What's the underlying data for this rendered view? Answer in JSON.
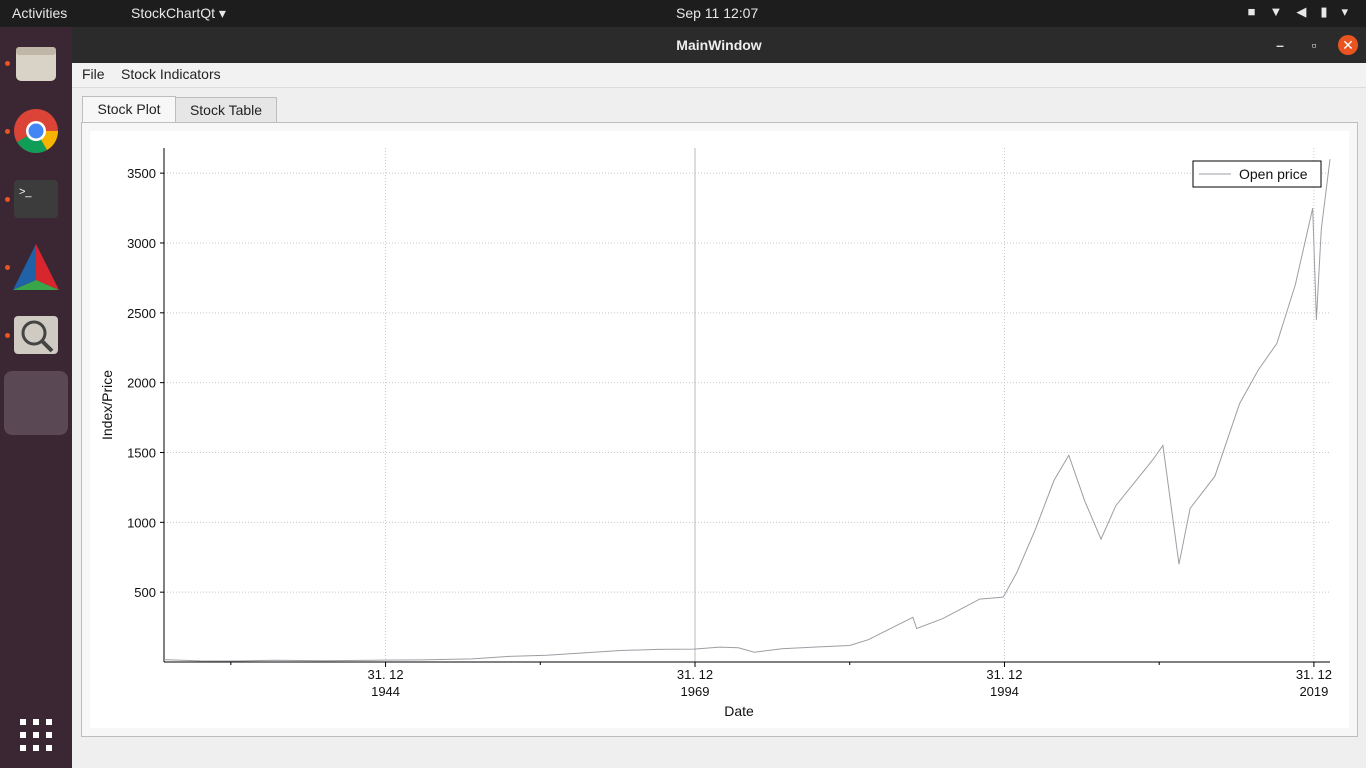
{
  "topbar": {
    "activities": "Activities",
    "app_menu": "StockChartQt",
    "clock": "Sep 11  12:07"
  },
  "window": {
    "title": "MainWindow"
  },
  "menubar": {
    "file": "File",
    "stock_indicators": "Stock Indicators"
  },
  "tabs": [
    {
      "label": "Stock Plot",
      "active": true
    },
    {
      "label": "Stock Table",
      "active": false
    }
  ],
  "chart_data": {
    "type": "line",
    "title": "",
    "xlabel": "Date",
    "ylabel": "Index/Price",
    "legend": "top-right",
    "series": [
      {
        "name": "Open price",
        "color": "#a09ca4",
        "x": [
          1927.1,
          1930,
          1933,
          1936,
          1940,
          1944,
          1948,
          1952,
          1955,
          1958,
          1961,
          1964,
          1967,
          1969.9,
          1972,
          1973.5,
          1974.8,
          1977,
          1980,
          1982.5,
          1984,
          1987.6,
          1987.9,
          1990,
          1993,
          1994.9,
          1996,
          1997.5,
          1999,
          2000.2,
          2001.5,
          2002.8,
          2004,
          2007,
          2007.8,
          2009.1,
          2010,
          2012,
          2014,
          2015.5,
          2017,
          2018.5,
          2019.9,
          2020.2,
          2020.6,
          2021.3
        ],
        "values": [
          17,
          8,
          7,
          13,
          9,
          13,
          15,
          22,
          40,
          48,
          65,
          82,
          90,
          92,
          107,
          102,
          70,
          95,
          108,
          118,
          160,
          320,
          240,
          310,
          450,
          465,
          640,
          950,
          1300,
          1480,
          1150,
          880,
          1120,
          1450,
          1550,
          700,
          1100,
          1330,
          1850,
          2090,
          2280,
          2700,
          3250,
          2450,
          3100,
          3600
        ]
      }
    ],
    "ylim": [
      0,
      3680
    ],
    "yticks": [
      500,
      1000,
      1500,
      2000,
      2500,
      3000,
      3500
    ],
    "xlim": [
      1927.1,
      2021.3
    ],
    "xticks": [
      {
        "x": 1945.0,
        "line1": "31. 12",
        "line2": "1944"
      },
      {
        "x": 1970.0,
        "line1": "31. 12",
        "line2": "1969"
      },
      {
        "x": 1995.0,
        "line1": "31. 12",
        "line2": "1994"
      },
      {
        "x": 2020.0,
        "line1": "31. 12",
        "line2": "2019"
      }
    ]
  }
}
